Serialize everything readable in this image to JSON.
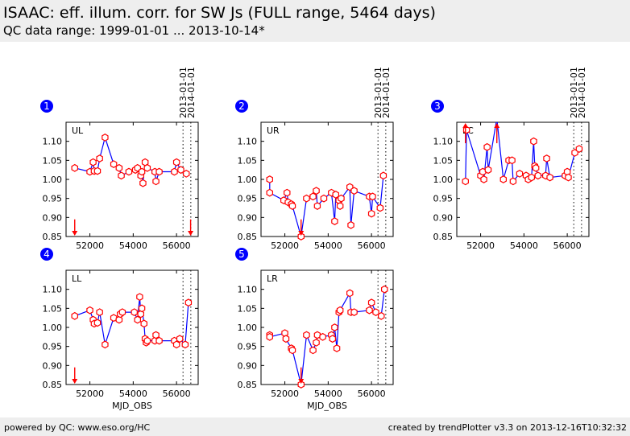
{
  "header": {
    "title": "ISAAC: eff. illum. corr. for SW Js (FULL range, 5464 days)",
    "subtitle": "QC data range: 1999-01-01 ... 2013-10-14*"
  },
  "footer": {
    "left": "powered by QC: www.eso.org/HC",
    "right": "created by trendPlotter v3.3 on 2013-12-16T10:32:32"
  },
  "colors": {
    "line": "#0000ff",
    "marker": "#ff0000",
    "badge": "#0000ff",
    "header_bg": "#eeeeee"
  },
  "chart_data": [
    {
      "type": "line",
      "panel": "1",
      "name": "UL",
      "xlabel": "",
      "xlim": [
        50900,
        57000
      ],
      "ylim": [
        0.85,
        1.15
      ],
      "xticks": [
        "52000",
        "54000",
        "56000"
      ],
      "yticks": [
        "0.85",
        "0.90",
        "0.95",
        "1.00",
        "1.05",
        "1.10"
      ],
      "markers": [
        {
          "x": 56300,
          "label": "2013-01-01"
        },
        {
          "x": 56660,
          "label": "2014-01-01"
        }
      ],
      "outliers": [
        {
          "x": 51300,
          "dir": "down"
        },
        {
          "x": 56650,
          "dir": "down"
        }
      ],
      "x": [
        51300,
        52000,
        52150,
        52200,
        52350,
        52450,
        52700,
        53100,
        53350,
        53450,
        53800,
        54100,
        54200,
        54350,
        54400,
        54450,
        54550,
        54650,
        55000,
        55050,
        55200,
        55900,
        56000,
        56200,
        56450
      ],
      "y": [
        1.03,
        1.02,
        1.045,
        1.022,
        1.022,
        1.055,
        1.11,
        1.04,
        1.03,
        1.01,
        1.02,
        1.025,
        1.03,
        1.01,
        1.02,
        0.99,
        1.045,
        1.03,
        1.02,
        0.995,
        1.02,
        1.02,
        1.045,
        1.025,
        1.015
      ]
    },
    {
      "type": "line",
      "panel": "2",
      "name": "UR",
      "xlabel": "",
      "xlim": [
        50900,
        57000
      ],
      "ylim": [
        0.85,
        1.15
      ],
      "xticks": [
        "52000",
        "54000",
        "56000"
      ],
      "yticks": [
        "0.85",
        "0.90",
        "0.95",
        "1.00",
        "1.05",
        "1.10"
      ],
      "markers": [
        {
          "x": 56300,
          "label": "2013-01-01"
        },
        {
          "x": 56660,
          "label": "2014-01-01"
        }
      ],
      "outliers": [
        {
          "x": 52750,
          "dir": "down"
        }
      ],
      "x": [
        51300,
        51300,
        51950,
        52100,
        52150,
        52300,
        52350,
        52750,
        53000,
        53300,
        53450,
        53500,
        53800,
        54150,
        54300,
        54350,
        54500,
        54550,
        54600,
        55000,
        55050,
        55200,
        55900,
        56000,
        56050,
        56400,
        56550
      ],
      "y": [
        1.0,
        0.965,
        0.945,
        0.965,
        0.94,
        0.935,
        0.93,
        0.85,
        0.95,
        0.955,
        0.97,
        0.93,
        0.95,
        0.965,
        0.89,
        0.96,
        0.945,
        0.93,
        0.95,
        0.98,
        0.88,
        0.97,
        0.955,
        0.91,
        0.955,
        0.925,
        1.01
      ]
    },
    {
      "type": "line",
      "panel": "3",
      "name": "LC",
      "xlabel": "",
      "xlim": [
        50900,
        57000
      ],
      "ylim": [
        0.85,
        1.15
      ],
      "xticks": [
        "52000",
        "54000",
        "56000"
      ],
      "yticks": [
        "0.85",
        "0.90",
        "0.95",
        "1.00",
        "1.05",
        "1.10"
      ],
      "markers": [
        {
          "x": 56300,
          "label": "2013-01-01"
        },
        {
          "x": 56660,
          "label": "2014-01-01"
        }
      ],
      "outliers": [
        {
          "x": 51300,
          "dir": "up"
        },
        {
          "x": 52750,
          "dir": "up"
        }
      ],
      "x": [
        51300,
        51350,
        52000,
        52100,
        52150,
        52300,
        52350,
        52750,
        53050,
        53300,
        53450,
        53500,
        53800,
        54100,
        54200,
        54350,
        54450,
        54500,
        54550,
        54650,
        55000,
        55050,
        55200,
        55900,
        56000,
        56050,
        56350,
        56550
      ],
      "y": [
        0.995,
        1.13,
        1.01,
        1.02,
        1.0,
        1.085,
        1.025,
        1.16,
        1.0,
        1.05,
        1.05,
        0.995,
        1.015,
        1.01,
        1.0,
        1.005,
        1.1,
        1.035,
        1.03,
        1.01,
        1.01,
        1.055,
        1.005,
        1.01,
        1.02,
        1.005,
        1.07,
        1.08
      ]
    },
    {
      "type": "line",
      "panel": "4",
      "name": "LL",
      "xlabel": "MJD_OBS",
      "xlim": [
        50900,
        57000
      ],
      "ylim": [
        0.85,
        1.15
      ],
      "xticks": [
        "52000",
        "54000",
        "56000"
      ],
      "yticks": [
        "0.85",
        "0.90",
        "0.95",
        "1.00",
        "1.05",
        "1.10"
      ],
      "markers": [
        {
          "x": 56300,
          "label": ""
        },
        {
          "x": 56660,
          "label": ""
        }
      ],
      "outliers": [
        {
          "x": 51300,
          "dir": "down"
        }
      ],
      "x": [
        51300,
        52000,
        52150,
        52200,
        52350,
        52450,
        52700,
        53100,
        53350,
        53400,
        53500,
        54050,
        54200,
        54300,
        54350,
        54400,
        54500,
        54550,
        54600,
        54650,
        55000,
        55050,
        55200,
        55900,
        56000,
        56150,
        56400,
        56550
      ],
      "y": [
        1.03,
        1.045,
        1.02,
        1.01,
        1.012,
        1.04,
        0.955,
        1.025,
        1.02,
        1.035,
        1.04,
        1.04,
        1.02,
        1.08,
        1.035,
        1.05,
        1.01,
        0.97,
        0.96,
        0.965,
        0.965,
        0.98,
        0.965,
        0.965,
        0.955,
        0.97,
        0.955,
        1.065
      ]
    },
    {
      "type": "line",
      "panel": "5",
      "name": "LR",
      "xlabel": "MJD_OBS",
      "xlim": [
        50900,
        57000
      ],
      "ylim": [
        0.85,
        1.15
      ],
      "xticks": [
        "52000",
        "54000",
        "56000"
      ],
      "yticks": [
        "0.85",
        "0.90",
        "0.95",
        "1.00",
        "1.05",
        "1.10"
      ],
      "markers": [
        {
          "x": 56300,
          "label": ""
        },
        {
          "x": 56660,
          "label": ""
        }
      ],
      "outliers": [
        {
          "x": 52750,
          "dir": "down"
        }
      ],
      "x": [
        51300,
        51300,
        52000,
        52050,
        52300,
        52350,
        52750,
        53000,
        53300,
        53450,
        53500,
        53750,
        54150,
        54200,
        54300,
        54400,
        54500,
        54550,
        55000,
        55050,
        55200,
        55900,
        56000,
        56200,
        56450,
        56600
      ],
      "y": [
        0.98,
        0.975,
        0.985,
        0.97,
        0.945,
        0.94,
        0.85,
        0.98,
        0.94,
        0.96,
        0.98,
        0.975,
        0.98,
        0.97,
        1.0,
        0.945,
        1.04,
        1.045,
        1.09,
        1.04,
        1.04,
        1.045,
        1.065,
        1.04,
        1.03,
        1.1
      ]
    }
  ]
}
